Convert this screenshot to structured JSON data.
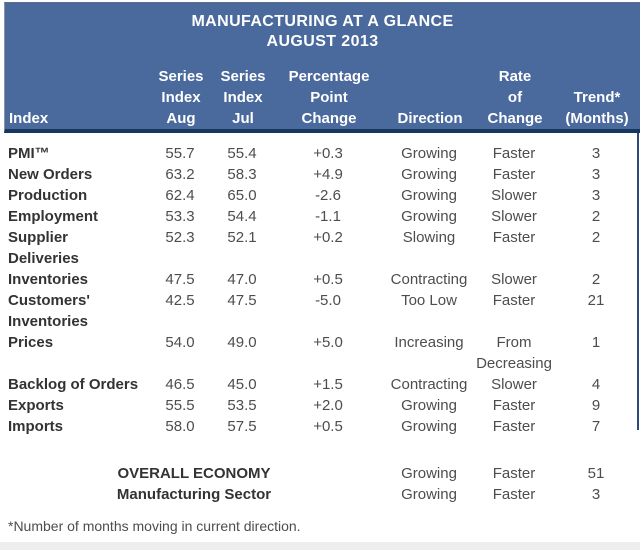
{
  "page": {
    "title_line1": "MANUFACTURING AT A GLANCE",
    "title_line2": "AUGUST 2013",
    "footnote": "*Number of months moving in current direction."
  },
  "colors": {
    "header_bg": "#4a699c",
    "header_bottom_border": "#17365d",
    "header_text": "#ffffff",
    "label_text": "#333333",
    "value_text": "#4d4d4d"
  },
  "table": {
    "columns": [
      {
        "id": "index",
        "label": "Index"
      },
      {
        "id": "aug",
        "label": "Series\nIndex\nAug"
      },
      {
        "id": "jul",
        "label": "Series\nIndex\nJul"
      },
      {
        "id": "change",
        "label": "Percentage\nPoint\nChange"
      },
      {
        "id": "direction",
        "label": "Direction"
      },
      {
        "id": "rate",
        "label": "Rate\nof\nChange"
      },
      {
        "id": "trend",
        "label": "Trend*\n(Months)"
      }
    ],
    "rows": [
      {
        "index": "PMI™",
        "aug": "55.7",
        "jul": "55.4",
        "change": "+0.3",
        "direction": "Growing",
        "rate": "Faster",
        "trend": "3"
      },
      {
        "index": "New Orders",
        "aug": "63.2",
        "jul": "58.3",
        "change": "+4.9",
        "direction": "Growing",
        "rate": "Faster",
        "trend": "3"
      },
      {
        "index": "Production",
        "aug": "62.4",
        "jul": "65.0",
        "change": "-2.6",
        "direction": "Growing",
        "rate": "Slower",
        "trend": "3"
      },
      {
        "index": "Employment",
        "aug": "53.3",
        "jul": "54.4",
        "change": "-1.1",
        "direction": "Growing",
        "rate": "Slower",
        "trend": "2"
      },
      {
        "index": "Supplier\nDeliveries",
        "aug": "52.3",
        "jul": "52.1",
        "change": "+0.2",
        "direction": "Slowing",
        "rate": "Faster",
        "trend": "2"
      },
      {
        "index": "Inventories",
        "aug": "47.5",
        "jul": "47.0",
        "change": "+0.5",
        "direction": "Contracting",
        "rate": "Slower",
        "trend": "2"
      },
      {
        "index": "Customers'\nInventories",
        "aug": "42.5",
        "jul": "47.5",
        "change": "-5.0",
        "direction": "Too Low",
        "rate": "Faster",
        "trend": "21"
      },
      {
        "index": "Prices",
        "aug": "54.0",
        "jul": "49.0",
        "change": "+5.0",
        "direction": "Increasing",
        "rate": "From\nDecreasing",
        "trend": "1"
      },
      {
        "index": "Backlog of Orders",
        "aug": "46.5",
        "jul": "45.0",
        "change": "+1.5",
        "direction": "Contracting",
        "rate": "Slower",
        "trend": "4"
      },
      {
        "index": "Exports",
        "aug": "55.5",
        "jul": "53.5",
        "change": "+2.0",
        "direction": "Growing",
        "rate": "Faster",
        "trend": "9"
      },
      {
        "index": "Imports",
        "aug": "58.0",
        "jul": "57.5",
        "change": "+0.5",
        "direction": "Growing",
        "rate": "Faster",
        "trend": "7"
      }
    ],
    "summary_rows": [
      {
        "index": "OVERALL ECONOMY",
        "direction": "Growing",
        "rate": "Faster",
        "trend": "51"
      },
      {
        "index": "Manufacturing Sector",
        "direction": "Growing",
        "rate": "Faster",
        "trend": "3"
      }
    ]
  }
}
